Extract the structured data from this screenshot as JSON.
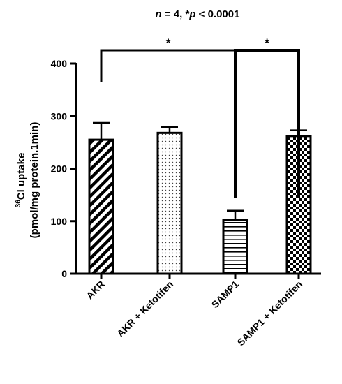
{
  "header": {
    "n_label": "n",
    "n_value": " = 4, *",
    "p_label": "p",
    "p_value": " < 0.0001"
  },
  "chart_data": {
    "type": "bar",
    "categories": [
      "AKR",
      "AKR + Ketotifen",
      "SAMP1",
      "SAMP1 + Ketotifen"
    ],
    "values": [
      255,
      268,
      102,
      262
    ],
    "errors": [
      32,
      11,
      18,
      11
    ],
    "patterns": [
      "diagonal-stripes",
      "dots",
      "horizontal-stripes",
      "checkerboard"
    ],
    "ylabel_iso": "36",
    "ylabel_line1": "Cl uptake",
    "ylabel_line2": "(pmol/mg protein.1min)",
    "ylim": [
      0,
      400
    ],
    "yticks": [
      0,
      100,
      200,
      300,
      400
    ],
    "grid": false,
    "significance": [
      {
        "from": 0,
        "to": 2,
        "label": "*"
      },
      {
        "from": 2,
        "to": 3,
        "label": "*"
      }
    ]
  }
}
